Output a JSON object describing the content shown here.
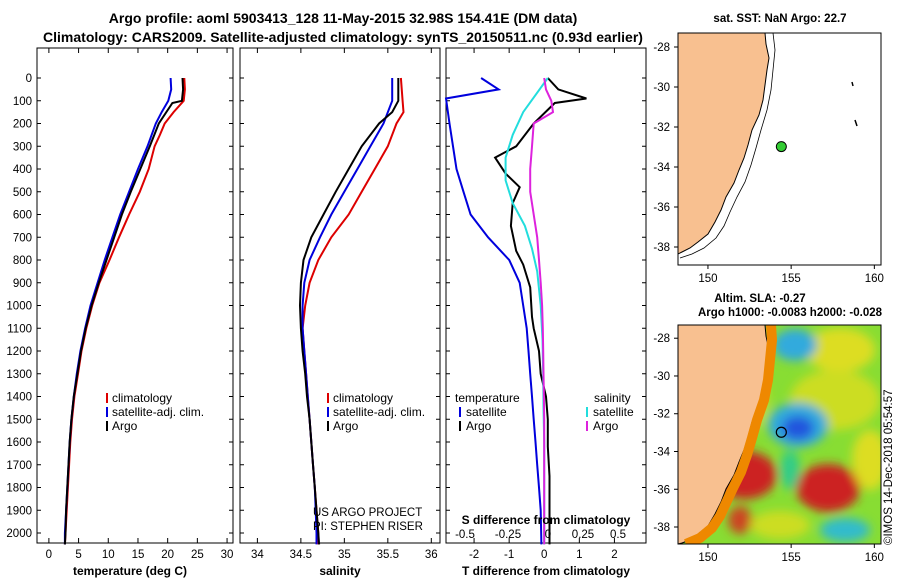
{
  "header": {
    "line1": "Argo profile: aoml 5903413_128 11-May-2015 32.98S 154.41E (DM data)",
    "line2": "Climatology: CARS2009. Satellite-adjusted climatology: synTS_20150511.nc (0.93d earlier)"
  },
  "colors": {
    "climatology": "#dd0000",
    "satellite": "#0000dd",
    "argo": "#000000",
    "sal_satellite": "#22dddd",
    "sal_argo": "#dd22dd",
    "land": "#f8c090",
    "marker": "#33cc33"
  },
  "chart_data": [
    {
      "type": "line",
      "xlabel": "temperature (deg C)",
      "x_ticks": [
        "0",
        "5",
        "10",
        "15",
        "20",
        "25",
        "30"
      ],
      "xlim": [
        -2,
        31
      ],
      "ylim": [
        2050,
        0
      ],
      "y_ticks": [
        "0",
        "100",
        "200",
        "300",
        "400",
        "500",
        "600",
        "700",
        "800",
        "900",
        "1000",
        "1100",
        "1200",
        "1300",
        "1400",
        "1500",
        "1600",
        "1700",
        "1800",
        "1900",
        "2000"
      ],
      "legend": [
        "climatology",
        "satellite-adj. clim.",
        "Argo"
      ],
      "series": [
        {
          "name": "climatology",
          "color": "climatology",
          "points": [
            [
              22.8,
              0
            ],
            [
              22.9,
              50
            ],
            [
              22.7,
              100
            ],
            [
              21,
              150
            ],
            [
              19.5,
              200
            ],
            [
              18.7,
              250
            ],
            [
              17.8,
              300
            ],
            [
              16.8,
              400
            ],
            [
              15.3,
              500
            ],
            [
              13.5,
              600
            ],
            [
              11.8,
              700
            ],
            [
              10.2,
              800
            ],
            [
              8.5,
              900
            ],
            [
              7.3,
              1000
            ],
            [
              6.3,
              1100
            ],
            [
              5.5,
              1200
            ],
            [
              4.9,
              1300
            ],
            [
              4.3,
              1400
            ],
            [
              3.9,
              1500
            ],
            [
              3.6,
              1600
            ],
            [
              3.4,
              1700
            ],
            [
              3.2,
              1800
            ],
            [
              3,
              1900
            ],
            [
              2.8,
              2000
            ],
            [
              2.7,
              2050
            ]
          ]
        },
        {
          "name": "satellite-adj. clim.",
          "color": "satellite",
          "points": [
            [
              20.5,
              0
            ],
            [
              20.6,
              50
            ],
            [
              20.1,
              100
            ],
            [
              19,
              150
            ],
            [
              18,
              200
            ],
            [
              16.6,
              300
            ],
            [
              15,
              400
            ],
            [
              13.5,
              500
            ],
            [
              12,
              600
            ],
            [
              10.7,
              700
            ],
            [
              9.4,
              800
            ],
            [
              8.2,
              900
            ],
            [
              7,
              1000
            ],
            [
              6.1,
              1100
            ],
            [
              5.3,
              1200
            ],
            [
              4.7,
              1300
            ],
            [
              4.2,
              1400
            ],
            [
              3.8,
              1500
            ],
            [
              3.5,
              1600
            ],
            [
              3.3,
              1700
            ],
            [
              3.1,
              1800
            ],
            [
              2.9,
              1900
            ],
            [
              2.7,
              2000
            ],
            [
              2.7,
              2050
            ]
          ]
        },
        {
          "name": "Argo",
          "color": "argo",
          "points": [
            [
              22.5,
              0
            ],
            [
              22.6,
              50
            ],
            [
              22.4,
              100
            ],
            [
              20.8,
              110
            ],
            [
              18.5,
              200
            ],
            [
              17,
              300
            ],
            [
              15.4,
              400
            ],
            [
              13.8,
              500
            ],
            [
              12.3,
              600
            ],
            [
              11,
              700
            ],
            [
              9.7,
              800
            ],
            [
              8.4,
              900
            ],
            [
              7.2,
              1000
            ],
            [
              6.2,
              1100
            ],
            [
              5.4,
              1200
            ],
            [
              4.8,
              1300
            ],
            [
              4.2,
              1400
            ],
            [
              3.8,
              1500
            ],
            [
              3.5,
              1600
            ],
            [
              3.3,
              1700
            ],
            [
              3.1,
              1800
            ],
            [
              2.9,
              1900
            ],
            [
              2.8,
              2000
            ],
            [
              2.7,
              2050
            ]
          ]
        }
      ]
    },
    {
      "type": "line",
      "xlabel": "salinity",
      "x_ticks": [
        "34",
        "34.5",
        "35",
        "35.5",
        "36"
      ],
      "xlim": [
        33.8,
        36.1
      ],
      "ylim": [
        2050,
        0
      ],
      "legend": [
        "climatology",
        "satellite-adj. clim.",
        "Argo"
      ],
      "notes": [
        "US ARGO PROJECT",
        "PI: STEPHEN RISER"
      ],
      "series": [
        {
          "name": "climatology",
          "color": "climatology",
          "points": [
            [
              35.65,
              0
            ],
            [
              35.67,
              100
            ],
            [
              35.68,
              150
            ],
            [
              35.6,
              200
            ],
            [
              35.5,
              300
            ],
            [
              35.35,
              400
            ],
            [
              35.2,
              500
            ],
            [
              35.05,
              600
            ],
            [
              34.85,
              700
            ],
            [
              34.7,
              800
            ],
            [
              34.6,
              900
            ],
            [
              34.55,
              1000
            ],
            [
              34.52,
              1100
            ],
            [
              34.54,
              1200
            ],
            [
              34.56,
              1300
            ],
            [
              34.58,
              1400
            ],
            [
              34.6,
              1500
            ],
            [
              34.62,
              1600
            ],
            [
              34.64,
              1700
            ],
            [
              34.66,
              1800
            ],
            [
              34.68,
              1900
            ],
            [
              34.7,
              2000
            ],
            [
              34.7,
              2050
            ]
          ]
        },
        {
          "name": "satellite-adj. clim.",
          "color": "satellite",
          "points": [
            [
              35.55,
              0
            ],
            [
              35.55,
              100
            ],
            [
              35.45,
              200
            ],
            [
              35.3,
              300
            ],
            [
              35.15,
              400
            ],
            [
              35,
              500
            ],
            [
              34.85,
              600
            ],
            [
              34.72,
              700
            ],
            [
              34.6,
              800
            ],
            [
              34.54,
              900
            ],
            [
              34.52,
              1000
            ],
            [
              34.52,
              1100
            ],
            [
              34.54,
              1200
            ],
            [
              34.56,
              1300
            ],
            [
              34.58,
              1400
            ],
            [
              34.6,
              1500
            ],
            [
              34.62,
              1600
            ],
            [
              34.64,
              1700
            ],
            [
              34.66,
              1800
            ],
            [
              34.67,
              1900
            ],
            [
              34.68,
              2000
            ],
            [
              34.68,
              2050
            ]
          ]
        },
        {
          "name": "Argo",
          "color": "argo",
          "points": [
            [
              35.62,
              0
            ],
            [
              35.62,
              100
            ],
            [
              35.55,
              150
            ],
            [
              35.4,
              200
            ],
            [
              35.2,
              300
            ],
            [
              35.05,
              400
            ],
            [
              34.9,
              500
            ],
            [
              34.76,
              600
            ],
            [
              34.62,
              700
            ],
            [
              34.53,
              800
            ],
            [
              34.5,
              900
            ],
            [
              34.49,
              1000
            ],
            [
              34.5,
              1100
            ],
            [
              34.52,
              1200
            ],
            [
              34.55,
              1300
            ],
            [
              34.57,
              1400
            ],
            [
              34.6,
              1500
            ],
            [
              34.62,
              1600
            ],
            [
              34.64,
              1700
            ],
            [
              34.66,
              1800
            ],
            [
              34.68,
              1900
            ],
            [
              34.7,
              2000
            ],
            [
              34.71,
              2050
            ]
          ]
        }
      ]
    },
    {
      "type": "line",
      "xlabel": "T difference from climatology",
      "x_ticks": [
        "-2",
        "-1",
        "0",
        "1",
        "2"
      ],
      "xlim": [
        -2.8,
        2.9
      ],
      "top_axis_label": "S difference from climatology",
      "top_ticks": [
        "-0.5",
        "-0.25",
        "0",
        "0.25",
        "0.5"
      ],
      "ylim": [
        2050,
        0
      ],
      "legend_left_title": "temperature",
      "legend_right_title": "salinity",
      "legend_left": [
        "satellite",
        "Argo"
      ],
      "legend_right": [
        "satellite",
        "Argo"
      ],
      "series": [
        {
          "name": "satellite",
          "color": "satellite",
          "points": [
            [
              -1.8,
              0
            ],
            [
              -1.3,
              50
            ],
            [
              -2.8,
              90
            ],
            [
              -2.7,
              200
            ],
            [
              -2.6,
              300
            ],
            [
              -2.5,
              400
            ],
            [
              -2.3,
              500
            ],
            [
              -2.1,
              600
            ],
            [
              -1.6,
              700
            ],
            [
              -1,
              800
            ],
            [
              -0.7,
              900
            ],
            [
              -0.6,
              1000
            ],
            [
              -0.5,
              1100
            ],
            [
              -0.45,
              1200
            ],
            [
              -0.4,
              1300
            ],
            [
              -0.35,
              1400
            ],
            [
              -0.3,
              1500
            ],
            [
              -0.25,
              1600
            ],
            [
              -0.2,
              1700
            ],
            [
              -0.15,
              1800
            ],
            [
              -0.1,
              1900
            ],
            [
              -0.08,
              2050
            ]
          ]
        },
        {
          "name": "Argo",
          "color": "argo",
          "points": [
            [
              0.1,
              0
            ],
            [
              0.4,
              50
            ],
            [
              1.2,
              90
            ],
            [
              0.3,
              110
            ],
            [
              -0.3,
              200
            ],
            [
              -0.8,
              300
            ],
            [
              -1.4,
              350
            ],
            [
              -1.1,
              420
            ],
            [
              -0.7,
              480
            ],
            [
              -0.9,
              550
            ],
            [
              -0.95,
              650
            ],
            [
              -0.8,
              760
            ],
            [
              -0.6,
              820
            ],
            [
              -0.4,
              920
            ],
            [
              -0.35,
              1050
            ],
            [
              -0.3,
              1100
            ],
            [
              -0.15,
              1200
            ],
            [
              -0.1,
              1300
            ],
            [
              0.05,
              1400
            ],
            [
              0.1,
              1500
            ],
            [
              0.1,
              1620
            ],
            [
              0.15,
              1750
            ],
            [
              0.15,
              1850
            ],
            [
              0.15,
              1950
            ],
            [
              0.15,
              2050
            ]
          ]
        },
        {
          "name": "sal_satellite",
          "color": "sal_satellite",
          "points": [
            [
              0.1,
              0
            ],
            [
              -0.6,
              150
            ],
            [
              -0.9,
              250
            ],
            [
              -1.1,
              350
            ],
            [
              -1.1,
              450
            ],
            [
              -0.9,
              550
            ],
            [
              -0.55,
              650
            ],
            [
              -0.35,
              750
            ],
            [
              -0.2,
              850
            ],
            [
              -0.1,
              1000
            ],
            [
              -0.05,
              1150
            ],
            [
              -0.03,
              1300
            ],
            [
              -0.02,
              1450
            ],
            [
              0,
              1600
            ],
            [
              0,
              1800
            ],
            [
              0,
              2000
            ],
            [
              0,
              2050
            ]
          ]
        },
        {
          "name": "sal_argo",
          "color": "sal_argo",
          "points": [
            [
              0,
              0
            ],
            [
              0.05,
              50
            ],
            [
              0.2,
              100
            ],
            [
              0.25,
              150
            ],
            [
              -0.3,
              200
            ],
            [
              -0.35,
              300
            ],
            [
              -0.4,
              400
            ],
            [
              -0.4,
              500
            ],
            [
              -0.3,
              600
            ],
            [
              -0.2,
              700
            ],
            [
              -0.15,
              800
            ],
            [
              -0.1,
              900
            ],
            [
              -0.06,
              1000
            ],
            [
              -0.04,
              1100
            ],
            [
              -0.03,
              1200
            ],
            [
              -0.02,
              1300
            ],
            [
              -0.01,
              1400
            ],
            [
              0,
              1500
            ],
            [
              0,
              1700
            ],
            [
              0,
              2050
            ]
          ]
        }
      ]
    },
    {
      "type": "map",
      "title": "sat. SST: NaN Argo: 22.7",
      "x_ticks": [
        "150",
        "155",
        "160"
      ],
      "y_ticks": [
        "-28",
        "-30",
        "-32",
        "-34",
        "-36",
        "-38"
      ],
      "xlim": [
        148.2,
        160.4
      ],
      "ylim": [
        -38.9,
        -27.3
      ],
      "marker": [
        154.41,
        -32.98
      ]
    },
    {
      "type": "heatmap",
      "title1": "Altim. SLA: -0.27",
      "title2": "Argo h1000: -0.0083 h2000: -0.028",
      "x_ticks": [
        "150",
        "155",
        "160"
      ],
      "y_ticks": [
        "-28",
        "-30",
        "-32",
        "-34",
        "-36",
        "-38"
      ],
      "xlim": [
        148.2,
        160.4
      ],
      "ylim": [
        -38.9,
        -27.3
      ],
      "marker": [
        154.41,
        -32.98
      ]
    }
  ],
  "footer": {
    "stamp": "©IMOS 14-Dec-2018 05:54:57"
  }
}
